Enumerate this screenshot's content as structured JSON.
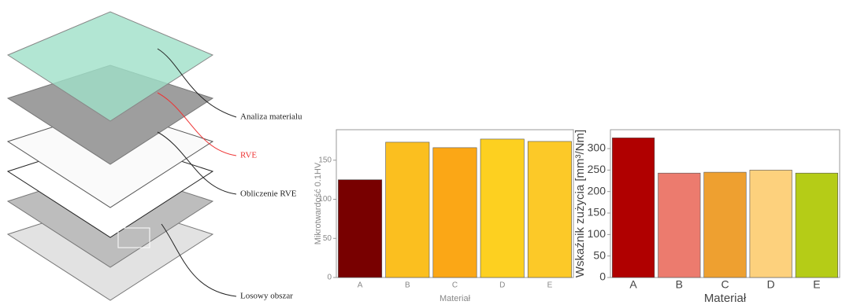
{
  "diagram": {
    "labels": [
      "Analiza materialu",
      "RVE",
      "Obliczenie RVE",
      "Losowy obszar"
    ]
  },
  "chart_data": [
    {
      "type": "bar",
      "y_label": "Mikrotwardość 0.1HV",
      "x_label": "Materiał",
      "categories": [
        "A",
        "B",
        "C",
        "D",
        "E"
      ],
      "values": [
        125,
        173,
        166,
        177,
        174
      ],
      "colors": [
        "#780000",
        "#fbbf1f",
        "#fba716",
        "#fdd020",
        "#fcc928"
      ],
      "ylim": [
        0,
        189
      ],
      "yticks": [
        0,
        50,
        100,
        150
      ]
    },
    {
      "type": "bar",
      "y_label": "Wskaźnik zużycia [mm³/Nm]",
      "x_label": "Materiał",
      "categories": [
        "A",
        "B",
        "C",
        "D",
        "E"
      ],
      "values": [
        325,
        243,
        245,
        250,
        243
      ],
      "colors": [
        "#b00000",
        "#ec7b6e",
        "#eea030",
        "#fdd17d",
        "#b5cc17"
      ],
      "ylim": [
        0,
        344
      ],
      "yticks": [
        0,
        50,
        100,
        150,
        200,
        250,
        300
      ]
    }
  ]
}
